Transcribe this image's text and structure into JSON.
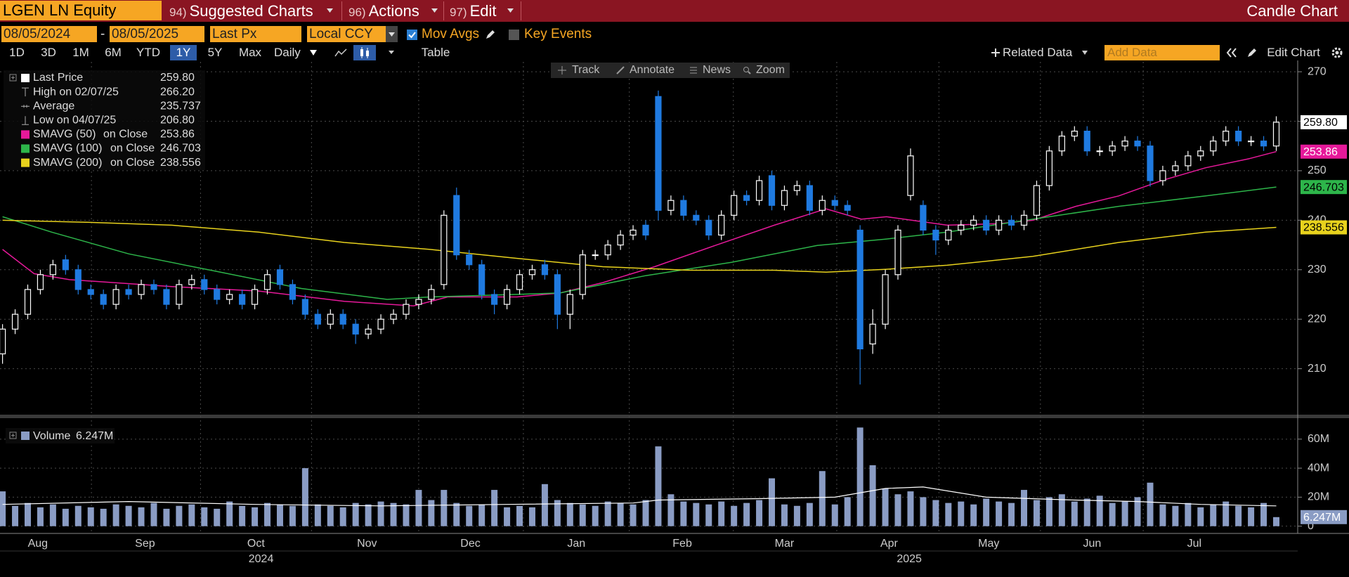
{
  "toolbar": {
    "security": "LGEN LN Equity",
    "menus": [
      {
        "num": "94)",
        "label": "Suggested Charts"
      },
      {
        "num": "96)",
        "label": "Actions"
      },
      {
        "num": "97)",
        "label": "Edit"
      }
    ],
    "title": "Candle Chart"
  },
  "settings": {
    "start": "08/05/2024",
    "separator": "-",
    "end": "08/05/2025",
    "field": "Last Px",
    "currency": "Local CCY",
    "mov_avgs": "Mov Avgs",
    "key_events": "Key Events"
  },
  "controls": {
    "periods": [
      "1D",
      "3D",
      "1M",
      "6M",
      "YTD",
      "1Y",
      "5Y",
      "Max"
    ],
    "frequency": "Daily",
    "table": "Table",
    "related": "Related Data",
    "add_data": "Add Data",
    "edit_chart": "Edit Chart"
  },
  "chart_tools": [
    "Track",
    "Annotate",
    "News",
    "Zoom"
  ],
  "chart_data": [
    {
      "type": "candlestick",
      "name": "Last Price",
      "color": "#ffffff",
      "up_color": "#ffffff",
      "down_color": "#1f7ae0",
      "open": [
        213,
        218,
        221,
        226,
        229,
        232,
        230,
        226,
        225,
        223,
        226,
        225,
        227,
        226,
        223,
        227,
        228,
        226,
        224,
        225,
        223,
        226,
        230,
        227,
        224,
        221,
        219,
        221,
        219,
        217,
        218,
        220,
        221,
        223,
        224,
        227,
        245,
        233,
        231,
        225,
        223,
        226,
        229,
        231,
        229,
        221,
        225,
        233,
        233,
        235,
        237,
        239,
        265,
        242,
        244,
        241,
        240,
        237,
        241,
        245,
        244,
        249,
        243,
        246,
        247,
        242,
        244,
        243,
        238,
        215,
        219,
        229,
        245,
        243,
        238,
        236,
        238,
        239,
        240,
        238,
        240,
        239,
        241,
        247,
        254,
        257,
        258,
        254,
        254,
        255,
        256,
        255,
        248,
        250,
        251,
        253,
        254,
        256,
        258,
        256,
        256,
        255
      ],
      "high": [
        219,
        222,
        227,
        230,
        232,
        233,
        231,
        227,
        226,
        227,
        227,
        228,
        228,
        227,
        228,
        229,
        229,
        227,
        226,
        226,
        227,
        230,
        231,
        228,
        225,
        222,
        222,
        222,
        220,
        219,
        221,
        222,
        224,
        225,
        227,
        242,
        246.6,
        234,
        232,
        226,
        227,
        230,
        231,
        232,
        230,
        226,
        234,
        234,
        236,
        238,
        239,
        240,
        266.2,
        245,
        245,
        242,
        241,
        242,
        246,
        246,
        249,
        250,
        247,
        248,
        248,
        245,
        245,
        244,
        239,
        222,
        230,
        239,
        254.5,
        244,
        239,
        239,
        240,
        241,
        241,
        241,
        241,
        242,
        248,
        255,
        258,
        259,
        259,
        255,
        256,
        257,
        257,
        256,
        251,
        252,
        254,
        255,
        257,
        259,
        259,
        257,
        257,
        261
      ],
      "low": [
        211,
        217,
        220,
        225,
        228,
        229,
        225,
        224,
        222,
        222,
        224,
        224,
        225,
        222,
        222,
        226,
        225,
        223,
        223,
        222,
        222,
        225,
        226,
        223,
        220,
        218,
        218,
        218,
        215,
        216,
        217,
        219,
        220,
        222,
        223,
        226,
        232,
        230,
        224,
        221,
        222,
        225,
        228,
        228,
        218,
        218,
        224,
        232,
        232,
        234,
        236,
        236,
        240,
        241,
        240,
        239,
        236,
        236,
        240,
        243,
        243,
        242,
        242,
        245,
        241,
        241,
        242,
        241,
        206.8,
        213,
        218,
        228,
        244,
        237,
        233,
        235,
        237,
        238,
        237,
        237,
        238,
        238,
        240,
        246,
        253,
        256,
        253,
        253,
        253,
        254,
        254,
        246.8,
        247,
        249,
        250,
        252,
        253,
        255,
        255,
        255,
        254,
        254
      ],
      "close": [
        218,
        221,
        226,
        229,
        231,
        230,
        226,
        225,
        223,
        226,
        225,
        227,
        226,
        223,
        227,
        228,
        226,
        224,
        225,
        223,
        226,
        229,
        227,
        224,
        221,
        219,
        221,
        219,
        217,
        218,
        220,
        221,
        223,
        224,
        226,
        241,
        233,
        231,
        225,
        223,
        226,
        229,
        230,
        229,
        221,
        225,
        233,
        233,
        235,
        237,
        238,
        237,
        242,
        244,
        241,
        240,
        237,
        241,
        245,
        244,
        248,
        243,
        246,
        247,
        242,
        244,
        243,
        242,
        214,
        219,
        229,
        238,
        253,
        238,
        236,
        238,
        239,
        240,
        238,
        240,
        239,
        241,
        247,
        254,
        257,
        258,
        254,
        254,
        255,
        256,
        255,
        248,
        250,
        251,
        253,
        254,
        256,
        258,
        256,
        256,
        255,
        259.8
      ],
      "last": {
        "value": 259.8,
        "label": "259.80"
      },
      "stats": [
        {
          "name": "High on 02/07/25",
          "value": {
            "value": 266.2,
            "label": "266.20"
          }
        },
        {
          "name": "Average",
          "value": 235.737
        },
        {
          "name": "Low on 04/07/25",
          "value": {
            "value": 206.8,
            "label": "206.80"
          }
        }
      ],
      "series": [
        {
          "name": "SMAVG (50)",
          "basis": "on Close",
          "color": "#e6199a",
          "last": 253.86,
          "x": [
            0,
            2.5,
            5.3,
            13.4,
            20.3,
            27.1,
            32.6,
            35.3,
            40.8,
            44.2,
            47.6,
            51.7,
            56.5,
            61.2,
            65.3,
            68.1,
            70.1,
            74.9,
            79,
            81.7,
            85.1,
            88.5,
            91.9,
            95.4,
            98.8,
            101
          ],
          "values": [
            234.1,
            229.2,
            228,
            226.6,
            225.7,
            223.6,
            222.7,
            224.5,
            224.5,
            225.3,
            227.4,
            230.6,
            234.9,
            239,
            242.3,
            240.2,
            240.7,
            239,
            239.3,
            240,
            242.8,
            244.9,
            248,
            250.6,
            252.4,
            253.86
          ]
        },
        {
          "name": "SMAVG (100)",
          "basis": "on Close",
          "color": "#2db54a",
          "last": 246.703,
          "x": [
            0,
            3.9,
            10,
            16.9,
            23.7,
            30.5,
            33.9,
            38,
            44.2,
            51,
            57.8,
            64.6,
            70.1,
            74.9,
            81.7,
            88.5,
            95.4,
            101
          ],
          "values": [
            240.7,
            237.6,
            233.2,
            229.7,
            226.2,
            224,
            224.5,
            224.8,
            225.3,
            228.8,
            231.5,
            234.9,
            236.2,
            237.6,
            240.2,
            242.8,
            244.9,
            246.703
          ]
        },
        {
          "name": "SMAVG (200)",
          "basis": "on Close",
          "color": "#e8d21d",
          "last": 238.556,
          "x": [
            0,
            6.6,
            13.4,
            20.3,
            27.1,
            33.9,
            40.8,
            47.6,
            54.4,
            61.2,
            65.3,
            70.1,
            74.9,
            81.7,
            88.5,
            95.4,
            101
          ],
          "values": [
            240,
            239.6,
            239,
            237.6,
            235.5,
            234.1,
            232.3,
            230.6,
            229.9,
            229.9,
            229.5,
            230.1,
            230.9,
            232.7,
            235.5,
            237.6,
            238.556
          ]
        }
      ],
      "xlim": [
        -0.2,
        102.7
      ],
      "ylim": [
        201,
        272
      ],
      "yticks": [
        210,
        220,
        230,
        240,
        250,
        260,
        270
      ],
      "grid": true
    },
    {
      "type": "bar",
      "name": "Volume",
      "color": "#8a9cc4",
      "values": [
        24,
        14,
        16,
        13,
        15,
        12,
        14,
        13,
        12,
        15,
        14,
        13,
        16,
        12,
        14,
        15,
        13,
        12,
        17,
        14,
        13,
        16,
        15,
        14,
        40,
        15,
        14,
        13,
        16,
        15,
        17,
        16,
        15,
        25,
        18,
        25,
        16,
        14,
        15,
        25,
        13,
        14,
        13,
        29,
        18,
        16,
        15,
        14,
        17,
        16,
        15,
        18,
        55,
        22,
        17,
        16,
        15,
        17,
        14,
        16,
        18,
        33,
        15,
        14,
        16,
        38,
        15,
        20,
        68,
        42,
        26,
        22,
        24,
        20,
        18,
        16,
        17,
        15,
        19,
        17,
        16,
        25,
        18,
        20,
        22,
        17,
        19,
        21,
        16,
        17,
        20,
        30,
        15,
        14,
        16,
        13,
        15,
        17,
        14,
        13,
        16,
        6.247
      ],
      "last": {
        "value": 6.247,
        "label": "6.247M"
      },
      "series": [
        {
          "color": "#ffffff",
          "x": [
            0,
            10,
            20,
            30,
            40,
            50,
            52,
            60,
            66,
            70,
            73,
            78,
            85,
            90,
            95,
            101
          ],
          "values": [
            15,
            17,
            15,
            14,
            15,
            16,
            18,
            19,
            20,
            26,
            27,
            20,
            18,
            17,
            15,
            14
          ]
        }
      ],
      "xlim": [
        -0.2,
        102.7
      ],
      "ylim": [
        -5,
        73
      ],
      "yticks": [
        0,
        {
          "value": 20,
          "label": "20M"
        },
        {
          "value": 40,
          "label": "40M"
        },
        {
          "value": 60,
          "label": "60M"
        }
      ],
      "xticks": [
        {
          "value": 2.8,
          "label": "Aug"
        },
        {
          "value": 11.3,
          "label": "Sep"
        },
        {
          "value": 20.1,
          "label": "Oct"
        },
        {
          "value": 28.9,
          "label": "Nov"
        },
        {
          "value": 37.1,
          "label": "Dec"
        },
        {
          "value": 45.5,
          "label": "Jan"
        },
        {
          "value": 53.9,
          "label": "Feb"
        },
        {
          "value": 62,
          "label": "Mar"
        },
        {
          "value": 70.3,
          "label": "Apr"
        },
        {
          "value": 78.2,
          "label": "May"
        },
        {
          "value": 86.4,
          "label": "Jun"
        },
        {
          "value": 94.5,
          "label": "Jul"
        }
      ],
      "x2ticks": [
        {
          "value": 20.5,
          "label": "2024"
        },
        {
          "value": 71.9,
          "label": "2025"
        }
      ],
      "grid": true
    }
  ]
}
